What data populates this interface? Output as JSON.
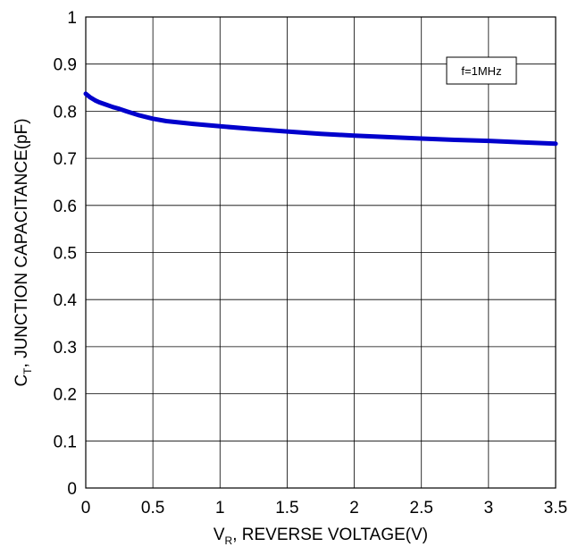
{
  "chart_data": {
    "type": "line",
    "title": "",
    "xlabel": {
      "main": "V",
      "sub": "R",
      "rest": ", REVERSE VOLTAGE(V)"
    },
    "ylabel": {
      "main": "C",
      "sub": "T",
      "rest": ", JUNCTION CAPACITANCE(pF)"
    },
    "xlim": [
      0,
      3.5
    ],
    "ylim": [
      0,
      1
    ],
    "x_ticks": [
      0,
      0.5,
      1,
      1.5,
      2,
      2.5,
      3,
      3.5
    ],
    "x_tick_labels": [
      "0",
      "0.5",
      "1",
      "1.5",
      "2",
      "2.5",
      "3",
      "3.5"
    ],
    "y_ticks": [
      0,
      0.1,
      0.2,
      0.3,
      0.4,
      0.5,
      0.6,
      0.7,
      0.8,
      0.9,
      1
    ],
    "y_tick_labels": [
      "0",
      "0.1",
      "0.2",
      "0.3",
      "0.4",
      "0.5",
      "0.6",
      "0.7",
      "0.8",
      "0.9",
      "1"
    ],
    "grid": true,
    "annotation": "f=1MHz",
    "series": [
      {
        "color": "#0000cc",
        "x": [
          0,
          0.03,
          0.07,
          0.1,
          0.15,
          0.2,
          0.25,
          0.3,
          0.4,
          0.5,
          0.6,
          0.8,
          1.0,
          1.25,
          1.5,
          1.75,
          2.0,
          2.25,
          2.5,
          2.75,
          3.0,
          3.25,
          3.5
        ],
        "y": [
          0.837,
          0.83,
          0.823,
          0.819,
          0.814,
          0.809,
          0.805,
          0.8,
          0.791,
          0.784,
          0.779,
          0.773,
          0.768,
          0.762,
          0.757,
          0.752,
          0.748,
          0.745,
          0.742,
          0.739,
          0.737,
          0.734,
          0.731
        ]
      }
    ]
  }
}
